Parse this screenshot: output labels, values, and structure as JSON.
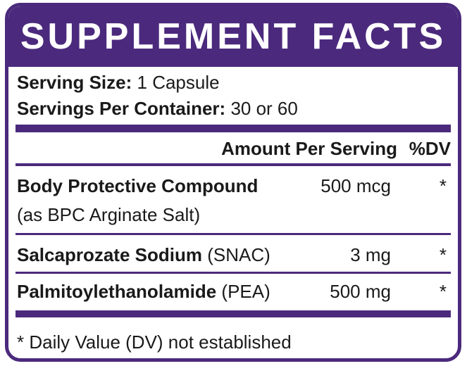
{
  "header": {
    "title": "SUPPLEMENT FACTS"
  },
  "serving": {
    "size_label": "Serving Size:",
    "size_value": "1 Capsule",
    "per_container_label": "Servings Per Container:",
    "per_container_value": "30 or 60"
  },
  "table": {
    "columns": [
      "Amount Per Serving",
      "%DV"
    ],
    "rows": [
      {
        "name": "Body Protective Compound",
        "amount": "500 mcg",
        "dv": "*",
        "note": "(as BPC Arginate Salt)"
      },
      {
        "name": "Salcaprozate Sodium",
        "qualifier": "(SNAC)",
        "amount": "3 mg",
        "dv": "*"
      },
      {
        "name": "Palmitoylethanolamide",
        "qualifier": "(PEA)",
        "amount": "500 mg",
        "dv": "*"
      }
    ]
  },
  "footnote": "* Daily Value (DV) not established"
}
